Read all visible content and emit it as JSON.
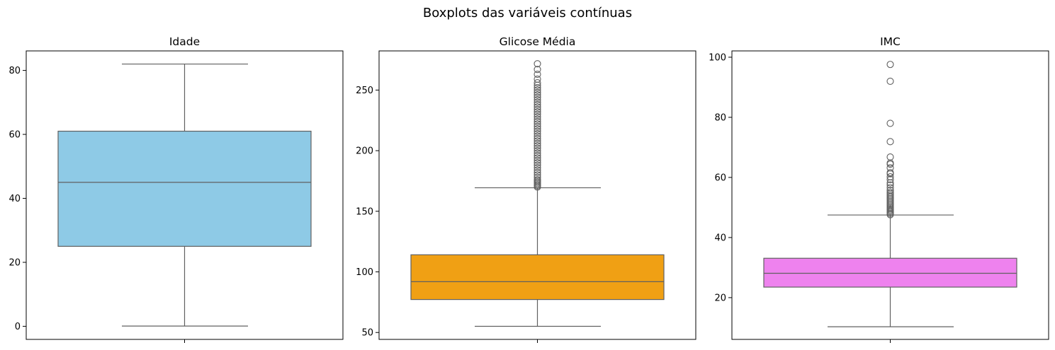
{
  "figure": {
    "title": "Boxplots das variáveis contínuas"
  },
  "chart_data": [
    {
      "type": "box",
      "title": "Idade",
      "xlabel": "",
      "ylabel": "",
      "ylim": [
        -4.1,
        86.1
      ],
      "yticks": [
        0,
        20,
        40,
        60,
        80
      ],
      "color": "#8ecae6",
      "box": {
        "whisker_low": 0.08,
        "q1": 25,
        "median": 45,
        "q3": 61,
        "whisker_high": 82
      },
      "outliers": []
    },
    {
      "type": "box",
      "title": "Glicose Média",
      "xlabel": "",
      "ylabel": "",
      "ylim": [
        44.3,
        282.3
      ],
      "yticks": [
        50,
        100,
        150,
        200,
        250
      ],
      "color": "#f0a014",
      "box": {
        "whisker_low": 55.1,
        "q1": 77.2,
        "median": 91.9,
        "q3": 114.1,
        "whisker_high": 169.4
      },
      "outliers": [
        170,
        171,
        172,
        173,
        174,
        175,
        176,
        178,
        180,
        182,
        184,
        186,
        188,
        190,
        192,
        194,
        196,
        198,
        200,
        202,
        204,
        206,
        208,
        210,
        212,
        214,
        216,
        218,
        220,
        222,
        224,
        226,
        228,
        230,
        232,
        234,
        236,
        238,
        240,
        242,
        244,
        246,
        248,
        250,
        252,
        254,
        256,
        259,
        263,
        267,
        271.7
      ]
    },
    {
      "type": "box",
      "title": "IMC",
      "xlabel": "",
      "ylabel": "",
      "ylim": [
        6.1,
        102.1
      ],
      "yticks": [
        20,
        40,
        60,
        80,
        100
      ],
      "color": "#ee82ee",
      "box": {
        "whisker_low": 10.3,
        "q1": 23.5,
        "median": 28.1,
        "q3": 33.1,
        "whisker_high": 47.5
      },
      "outliers": [
        47.6,
        48,
        48.4,
        48.8,
        49.2,
        49.6,
        50,
        50.5,
        51,
        51.5,
        52,
        52.5,
        53,
        53.5,
        54,
        54.5,
        55,
        55.7,
        56.6,
        57.5,
        58.2,
        59.3,
        60.2,
        61.2,
        61.6,
        63.2,
        64.4,
        64.8,
        66.8,
        71.9,
        78,
        92,
        97.6
      ]
    }
  ]
}
